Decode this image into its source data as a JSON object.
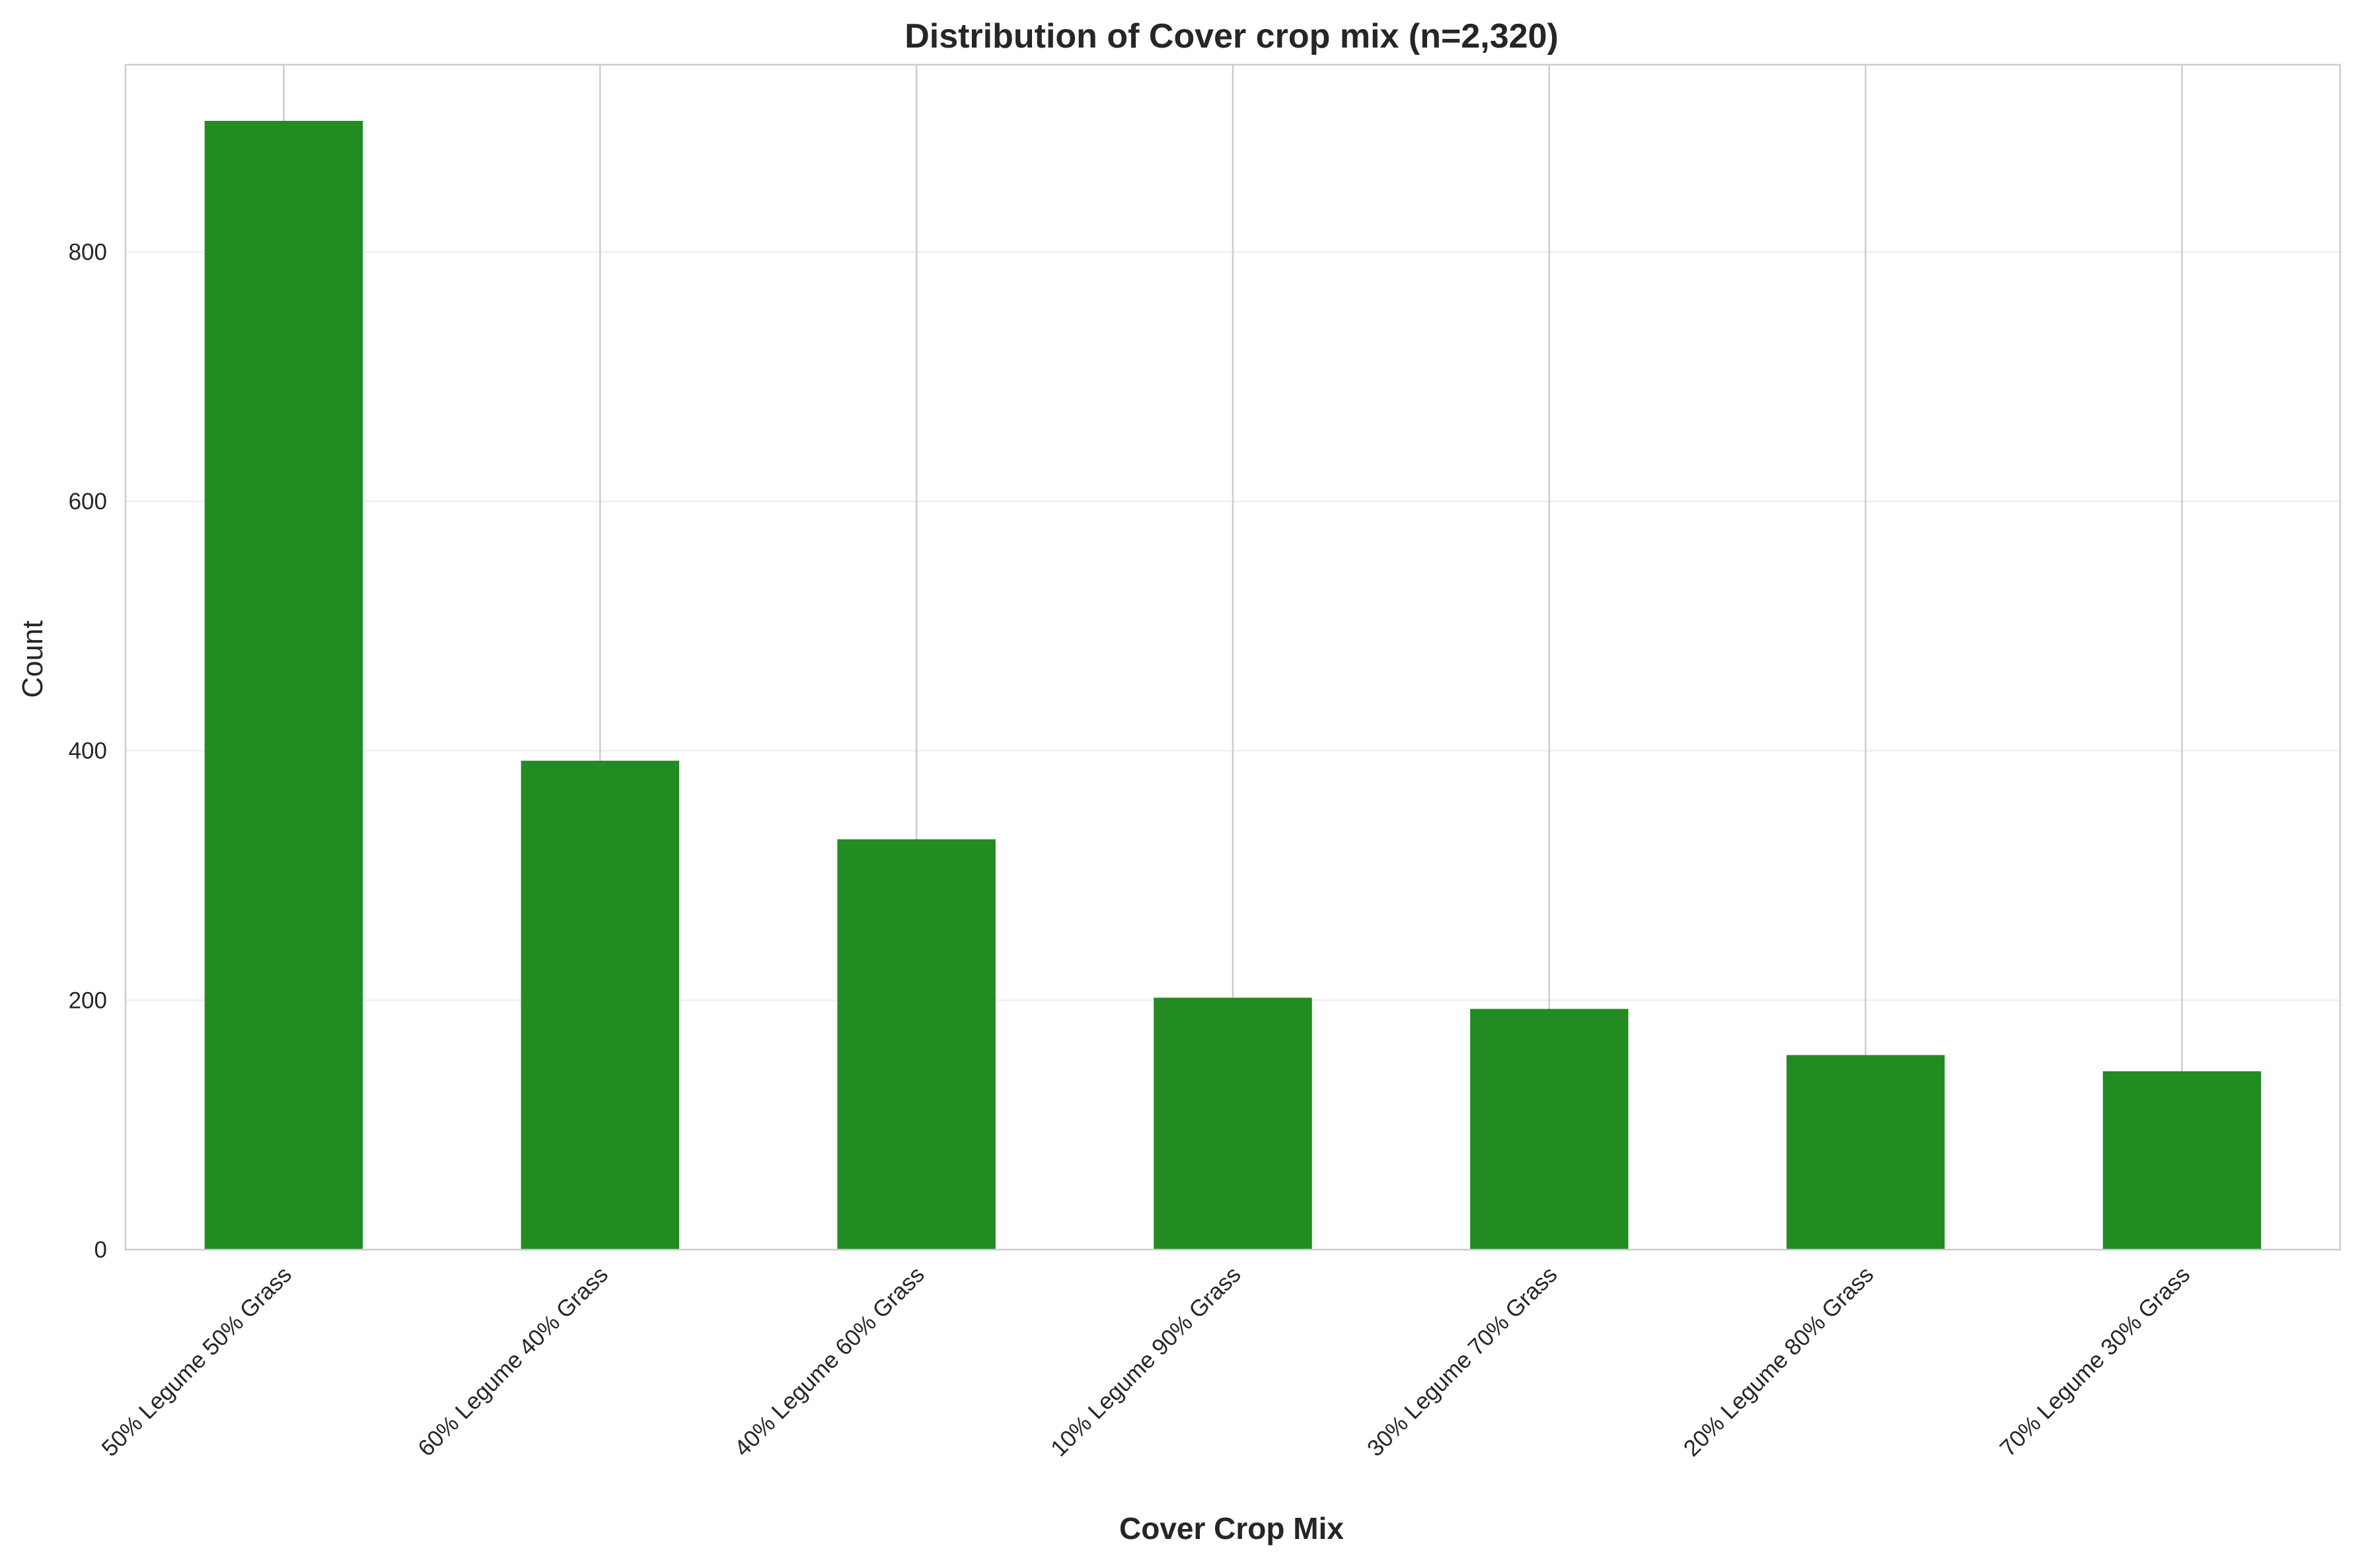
{
  "chart_data": {
    "type": "bar",
    "title": "Distribution of Cover crop mix (n=2,320)",
    "xlabel": "Cover Crop Mix",
    "ylabel": "Count",
    "categories": [
      "50% Legume 50% Grass",
      "60% Legume 40% Grass",
      "40% Legume 60% Grass",
      "10% Legume 90% Grass",
      "30% Legume 70% Grass",
      "20% Legume 80% Grass",
      "70% Legume 30% Grass"
    ],
    "values": [
      905,
      392,
      329,
      202,
      193,
      156,
      143
    ],
    "ylim": [
      0,
      950
    ],
    "yticks": [
      0,
      200,
      400,
      600,
      800
    ],
    "bar_color": "#228b22",
    "grid": true,
    "legend": "none"
  }
}
